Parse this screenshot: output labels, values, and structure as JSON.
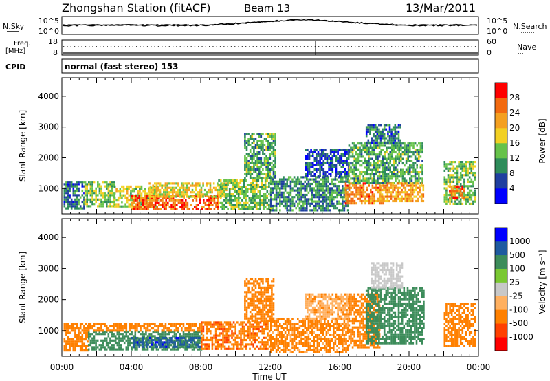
{
  "header": {
    "title": "Zhongshan Station (fitACF)",
    "beam": "Beam 13",
    "date": "13/Mar/2011"
  },
  "noise_panel": {
    "left_label": "N.Sky",
    "right_label": "N.Search",
    "ticks_left": [
      "10^5",
      "10^0"
    ],
    "ticks_right": [
      "10^5",
      "10^0"
    ]
  },
  "freq_panel": {
    "left_label_1": "Freq.",
    "left_label_2": "[MHz]",
    "right_label": "Nave",
    "ticks_left": [
      "18",
      "8"
    ],
    "ticks_right": [
      "60",
      "0"
    ]
  },
  "cpid": {
    "label": "CPID",
    "value": "normal (fast stereo) 153"
  },
  "colors": {
    "power": [
      "#0000ff",
      "#1f3fa0",
      "#2e8c5a",
      "#66c24a",
      "#f2d023",
      "#f4a020",
      "#f26a10",
      "#ff0000"
    ],
    "velocity": [
      "#ff0000",
      "#ff4000",
      "#ff8000",
      "#ffb060",
      "#c8c8c8",
      "#7ac832",
      "#3c8c5a",
      "#1e5aa0",
      "#0000ff"
    ]
  },
  "chart_data": [
    {
      "type": "heatmap",
      "name": "Power",
      "ylabel": "Slant Range [km]",
      "yticks": [
        "1000",
        "2000",
        "3000",
        "4000"
      ],
      "ylim": [
        180,
        4600
      ],
      "xlim": [
        0,
        24
      ],
      "xticks": [
        "00:00",
        "04:00",
        "08:00",
        "12:00",
        "16:00",
        "20:00",
        "00:00"
      ],
      "colorbar": {
        "label": "Power [dB]",
        "ticks": [
          "4",
          "8",
          "12",
          "16",
          "20",
          "24",
          "28"
        ],
        "range": [
          0,
          32
        ]
      },
      "regions": [
        {
          "t": [
            0.1,
            1.3
          ],
          "r": [
            350,
            1250
          ],
          "level": 8
        },
        {
          "t": [
            1.3,
            3.0
          ],
          "r": [
            400,
            1250
          ],
          "level": 14
        },
        {
          "t": [
            3.0,
            5.5
          ],
          "r": [
            400,
            1100
          ],
          "level": 16
        },
        {
          "t": [
            4.0,
            9.0
          ],
          "r": [
            300,
            800
          ],
          "level": 26
        },
        {
          "t": [
            5.0,
            9.5
          ],
          "r": [
            700,
            1200
          ],
          "level": 18
        },
        {
          "t": [
            9.0,
            12.0
          ],
          "r": [
            350,
            1300
          ],
          "level": 14
        },
        {
          "t": [
            10.5,
            12.3
          ],
          "r": [
            1300,
            2800
          ],
          "level": 12
        },
        {
          "t": [
            12.0,
            16.5
          ],
          "r": [
            300,
            1400
          ],
          "level": 10
        },
        {
          "t": [
            14.0,
            16.5
          ],
          "r": [
            1400,
            2300
          ],
          "level": 6
        },
        {
          "t": [
            16.3,
            18.5
          ],
          "r": [
            500,
            1200
          ],
          "level": 24
        },
        {
          "t": [
            16.5,
            20.8
          ],
          "r": [
            1200,
            2500
          ],
          "level": 12
        },
        {
          "t": [
            18.3,
            20.8
          ],
          "r": [
            600,
            1200
          ],
          "level": 22
        },
        {
          "t": [
            17.5,
            19.5
          ],
          "r": [
            2500,
            3100
          ],
          "level": 8
        },
        {
          "t": [
            22.0,
            23.8
          ],
          "r": [
            500,
            1900
          ],
          "level": 14
        },
        {
          "t": [
            22.3,
            23.2
          ],
          "r": [
            700,
            1100
          ],
          "level": 26
        }
      ]
    },
    {
      "type": "heatmap",
      "name": "Velocity",
      "ylabel": "Slant Range [km]",
      "yticks": [
        "1000",
        "2000",
        "3000",
        "4000"
      ],
      "ylim": [
        180,
        4600
      ],
      "xlim": [
        0,
        24
      ],
      "xticks": [
        "00:00",
        "04:00",
        "08:00",
        "12:00",
        "16:00",
        "20:00",
        "00:00"
      ],
      "xlabel": "Time UT",
      "colorbar": {
        "label": "Velocity [m s⁻¹]",
        "ticks": [
          "-1000",
          "-500",
          "-100",
          "-25",
          "25",
          "100",
          "500",
          "1000"
        ]
      },
      "regions": [
        {
          "t": [
            0.1,
            1.5
          ],
          "r": [
            400,
            1250
          ],
          "level": -300
        },
        {
          "t": [
            1.5,
            8.0
          ],
          "r": [
            400,
            1000
          ],
          "level": 300
        },
        {
          "t": [
            1.5,
            8.0
          ],
          "r": [
            1000,
            1250
          ],
          "level": -200
        },
        {
          "t": [
            4.0,
            8.0
          ],
          "r": [
            500,
            800
          ],
          "level": 700
        },
        {
          "t": [
            8.0,
            12.0
          ],
          "r": [
            400,
            1300
          ],
          "level": -400
        },
        {
          "t": [
            10.5,
            12.2
          ],
          "r": [
            1300,
            2700
          ],
          "level": -200
        },
        {
          "t": [
            12.0,
            16.5
          ],
          "r": [
            300,
            1400
          ],
          "level": -150
        },
        {
          "t": [
            14.0,
            16.5
          ],
          "r": [
            1400,
            2200
          ],
          "level": -80
        },
        {
          "t": [
            16.5,
            18.3
          ],
          "r": [
            500,
            2200
          ],
          "level": -300
        },
        {
          "t": [
            17.5,
            20.8
          ],
          "r": [
            600,
            2400
          ],
          "level": 250
        },
        {
          "t": [
            17.8,
            19.6
          ],
          "r": [
            2400,
            3200
          ],
          "level": 0
        },
        {
          "t": [
            22.0,
            23.8
          ],
          "r": [
            500,
            1900
          ],
          "level": -300
        }
      ]
    }
  ]
}
